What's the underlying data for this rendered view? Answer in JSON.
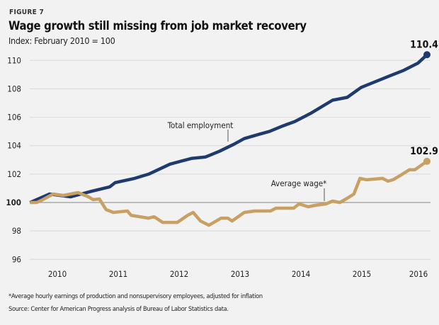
{
  "figure_label": "FIGURE 7",
  "chart_data": {
    "type": "line",
    "title": "Wage growth still missing from job market recovery",
    "subtitle": "Index: February 2010 = 100",
    "xlabel": "",
    "ylabel": "",
    "x_ticks": [
      "2010",
      "2011",
      "2012",
      "2013",
      "2014",
      "2015",
      "2016"
    ],
    "y_ticks": [
      96,
      98,
      100,
      102,
      104,
      106,
      108,
      110
    ],
    "ylim": [
      96,
      110
    ],
    "xlim": [
      2010.05,
      2016.57
    ],
    "grid": true,
    "baseline": 100,
    "series": [
      {
        "name": "Total employment",
        "color": "#1f3a6e",
        "end_label": "110.4",
        "points": [
          [
            2010.05,
            100
          ],
          [
            2010.37,
            100.6
          ],
          [
            2010.72,
            100.4
          ],
          [
            2011.07,
            100.8
          ],
          [
            2011.36,
            101.1
          ],
          [
            2011.45,
            101.4
          ],
          [
            2011.77,
            101.7
          ],
          [
            2012.0,
            102.0
          ],
          [
            2012.35,
            102.7
          ],
          [
            2012.7,
            103.1
          ],
          [
            2012.93,
            103.2
          ],
          [
            2013.16,
            103.6
          ],
          [
            2013.4,
            104.1
          ],
          [
            2013.57,
            104.5
          ],
          [
            2013.81,
            104.8
          ],
          [
            2013.98,
            105.0
          ],
          [
            2014.21,
            105.4
          ],
          [
            2014.4,
            105.7
          ],
          [
            2014.67,
            106.3
          ],
          [
            2015.02,
            107.2
          ],
          [
            2015.26,
            107.4
          ],
          [
            2015.49,
            108.1
          ],
          [
            2015.72,
            108.5
          ],
          [
            2015.95,
            108.9
          ],
          [
            2016.19,
            109.3
          ],
          [
            2016.42,
            109.8
          ],
          [
            2016.57,
            110.4
          ]
        ]
      },
      {
        "name": "Average wage*",
        "color": "#c8a063",
        "end_label": "102.9",
        "points": [
          [
            2010.05,
            100
          ],
          [
            2010.16,
            100
          ],
          [
            2010.26,
            100.2
          ],
          [
            2010.43,
            100.6
          ],
          [
            2010.6,
            100.5
          ],
          [
            2010.84,
            100.7
          ],
          [
            2011.01,
            100.4
          ],
          [
            2011.09,
            100.2
          ],
          [
            2011.19,
            100.25
          ],
          [
            2011.3,
            99.5
          ],
          [
            2011.42,
            99.3
          ],
          [
            2011.65,
            99.4
          ],
          [
            2011.71,
            99.1
          ],
          [
            2012.0,
            98.9
          ],
          [
            2012.09,
            99.0
          ],
          [
            2012.23,
            98.6
          ],
          [
            2012.47,
            98.6
          ],
          [
            2012.64,
            99.1
          ],
          [
            2012.73,
            99.3
          ],
          [
            2012.85,
            98.7
          ],
          [
            2012.99,
            98.4
          ],
          [
            2013.19,
            98.9
          ],
          [
            2013.3,
            98.9
          ],
          [
            2013.37,
            98.7
          ],
          [
            2013.57,
            99.3
          ],
          [
            2013.74,
            99.4
          ],
          [
            2014.0,
            99.4
          ],
          [
            2014.09,
            99.6
          ],
          [
            2014.38,
            99.6
          ],
          [
            2014.47,
            99.9
          ],
          [
            2014.62,
            99.7
          ],
          [
            2014.73,
            99.8
          ],
          [
            2014.91,
            99.9
          ],
          [
            2015.02,
            100.1
          ],
          [
            2015.14,
            100.0
          ],
          [
            2015.26,
            100.3
          ],
          [
            2015.37,
            100.6
          ],
          [
            2015.47,
            101.7
          ],
          [
            2015.58,
            101.6
          ],
          [
            2015.84,
            101.7
          ],
          [
            2015.93,
            101.5
          ],
          [
            2016.01,
            101.6
          ],
          [
            2016.13,
            101.9
          ],
          [
            2016.28,
            102.3
          ],
          [
            2016.37,
            102.3
          ],
          [
            2016.57,
            102.9
          ]
        ]
      }
    ]
  },
  "footnote": "*Average hourly earnings of production and nonsupervisory employees, adjusted for inflation",
  "source": "Source: Center for American Progress analysis of Bureau of Labor Statistics data."
}
